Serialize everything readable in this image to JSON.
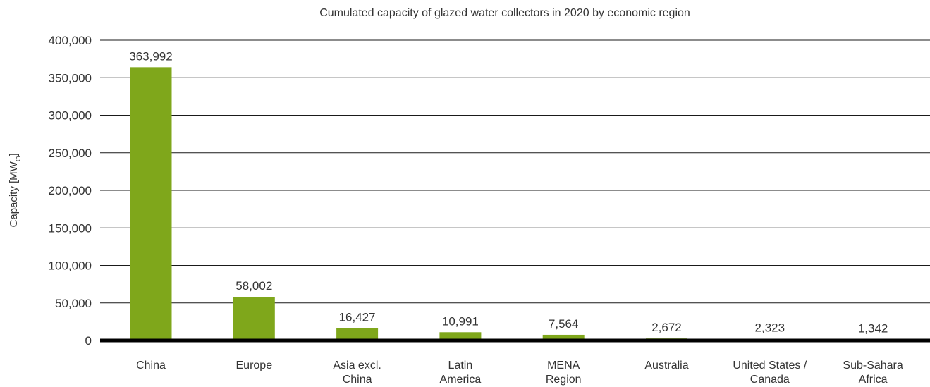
{
  "chart_data": {
    "type": "bar",
    "title": "Cumulated capacity of glazed water collectors in 2020 by economic region",
    "xlabel": "",
    "ylabel": "Capacity [MW",
    "ylabel_subscript": "th",
    "ylabel_suffix": "]",
    "ylim": [
      0,
      400000
    ],
    "yticks": [
      "0",
      "50,000",
      "100,000",
      "150,000",
      "200,000",
      "250,000",
      "300,000",
      "350,000",
      "400,000"
    ],
    "ytick_values": [
      0,
      50000,
      100000,
      150000,
      200000,
      250000,
      300000,
      350000,
      400000
    ],
    "grid": true,
    "categories": [
      [
        "China"
      ],
      [
        "Europe"
      ],
      [
        "Asia excl.",
        "China"
      ],
      [
        "Latin",
        "America"
      ],
      [
        "MENA",
        "Region"
      ],
      [
        "Australia"
      ],
      [
        "United States /",
        "Canada"
      ],
      [
        "Sub-Sahara",
        "Africa"
      ]
    ],
    "values": [
      363992,
      58002,
      16427,
      10991,
      7564,
      2672,
      2323,
      1342
    ],
    "data_labels": [
      "363,992",
      "58,002",
      "16,427",
      "10,991",
      "7,564",
      "2,672",
      "2,323",
      "1,342"
    ],
    "bar_color": "#7fa71b"
  }
}
